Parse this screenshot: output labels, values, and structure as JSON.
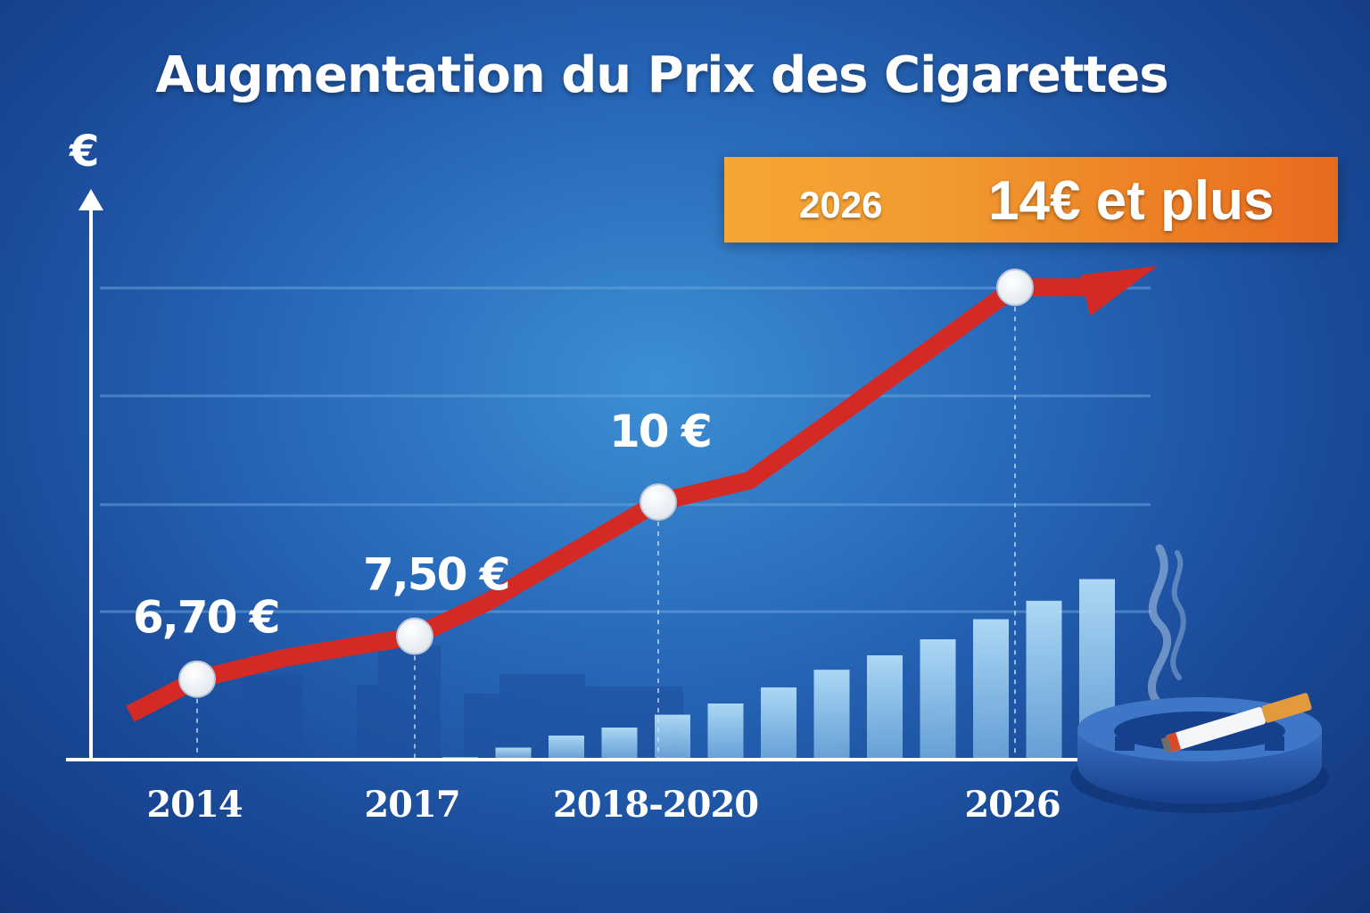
{
  "colors": {
    "line": "#d42a26",
    "banner": "#ee8a28",
    "bars": "#a7d6f3",
    "background": "#2767b8"
  },
  "banner": {
    "year": "2026",
    "price": "14€ et plus"
  },
  "chart_data": {
    "type": "line",
    "title": "Augmentation du Prix des Cigarettes",
    "ylabel": "€",
    "xlabel": "",
    "ylim": [
      5.2,
      15.5
    ],
    "grid": true,
    "categories": [
      "2014",
      "2017",
      "2018-2020",
      "2026"
    ],
    "points": [
      {
        "x": "2014",
        "y": 6.7,
        "label": "6,70 €"
      },
      {
        "x": "2017",
        "y": 7.5,
        "label": "7,50 €"
      },
      {
        "x": "2018-2020",
        "y": 10,
        "label": "10 €"
      },
      {
        "x": "2026",
        "y": 14,
        "label": ""
      }
    ],
    "background_bars": [
      0.3,
      1.5,
      3,
      4,
      5.6,
      7,
      9,
      11.2,
      13,
      15,
      17.5,
      19.8,
      22.5
    ]
  }
}
